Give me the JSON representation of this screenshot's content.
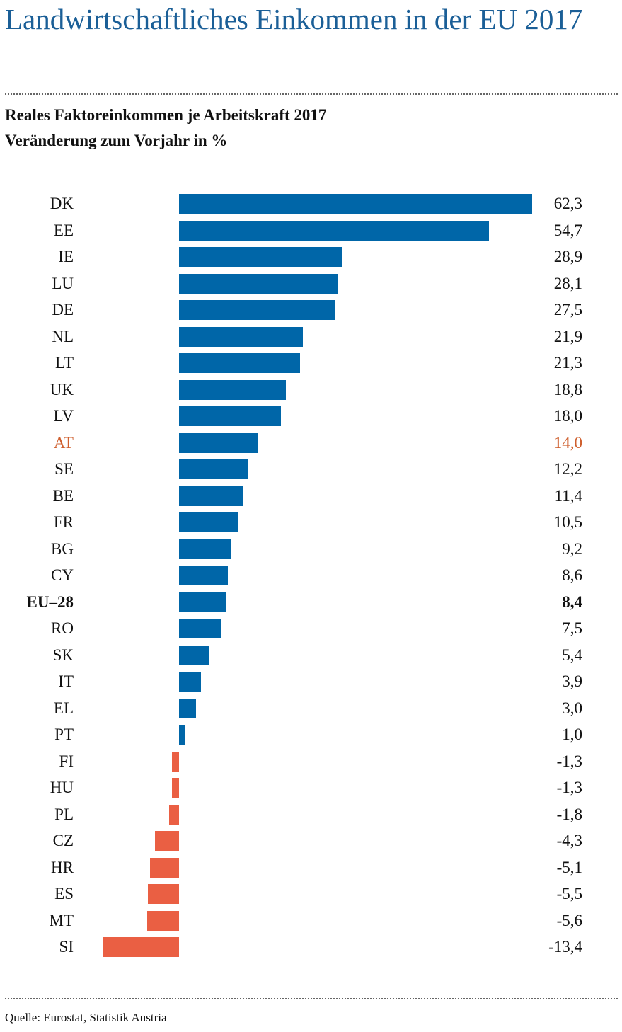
{
  "title": "Landwirtschaftliches Einkommen in der EU 2017",
  "subtitle1": "Reales Faktoreinkommen je Arbeitskraft 2017",
  "subtitle2": "Veränderung zum Vorjahr in %",
  "source": "Quelle: Eurostat, Statistik Austria",
  "colors": {
    "positive": "#0066a8",
    "negative": "#ea5f43",
    "highlight": "#cf5f2e",
    "title": "#1b5f97"
  },
  "chart_data": {
    "type": "bar",
    "orientation": "horizontal",
    "title": "Reales Faktoreinkommen je Arbeitskraft 2017",
    "ylabel": "Veränderung zum Vorjahr in %",
    "categories": [
      "DK",
      "EE",
      "IE",
      "LU",
      "DE",
      "NL",
      "LT",
      "UK",
      "LV",
      "AT",
      "SE",
      "BE",
      "FR",
      "BG",
      "CY",
      "EU–28",
      "RO",
      "SK",
      "IT",
      "EL",
      "PT",
      "FI",
      "HU",
      "PL",
      "CZ",
      "HR",
      "ES",
      "MT",
      "SI"
    ],
    "values": [
      62.3,
      54.7,
      28.9,
      28.1,
      27.5,
      21.9,
      21.3,
      18.8,
      18.0,
      14.0,
      12.2,
      11.4,
      10.5,
      9.2,
      8.6,
      8.4,
      7.5,
      5.4,
      3.9,
      3.0,
      1.0,
      -1.3,
      -1.3,
      -1.8,
      -4.3,
      -5.1,
      -5.5,
      -5.6,
      -13.4
    ],
    "labels": [
      "62,3",
      "54,7",
      "28,9",
      "28,1",
      "27,5",
      "21,9",
      "21,3",
      "18,8",
      "18,0",
      "14,0",
      "12,2",
      "11,4",
      "10,5",
      "9,2",
      "8,6",
      "8,4",
      "7,5",
      "5,4",
      "3,9",
      "3,0",
      "1,0",
      "-1,3",
      "-1,3",
      "-1,8",
      "-4,3",
      "-5,1",
      "-5,5",
      "-5,6",
      "-13,4"
    ],
    "highlight": "AT",
    "bold": "EU–28"
  }
}
